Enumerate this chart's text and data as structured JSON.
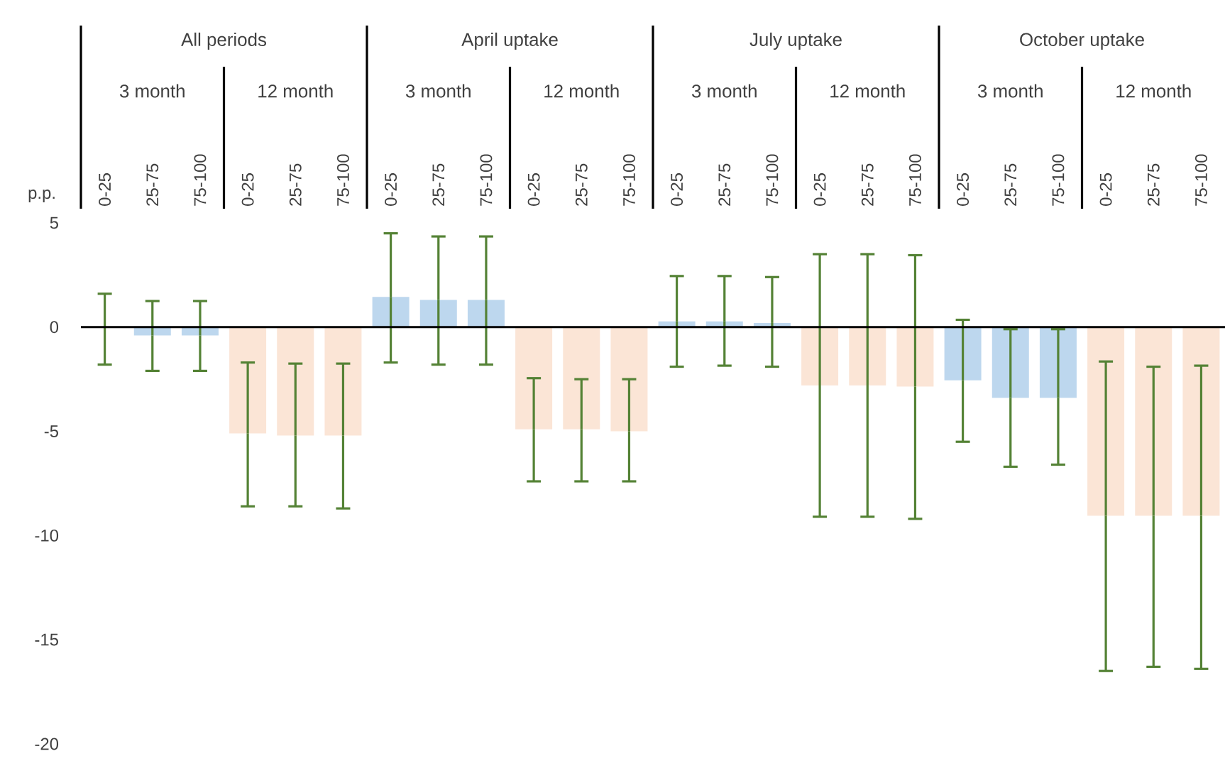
{
  "chart_data": {
    "type": "bar",
    "ylabel": "p.p.",
    "categories": [
      "0-25",
      "25-75",
      "75-100",
      "0-25",
      "25-75",
      "75-100",
      "0-25",
      "25-75",
      "75-100",
      "0-25",
      "25-75",
      "75-100",
      "0-25",
      "25-75",
      "75-100",
      "0-25",
      "25-75",
      "75-100",
      "0-25",
      "25-75",
      "75-100",
      "0-25",
      "25-75",
      "75-100"
    ],
    "series": [
      {
        "color": "#bdd7ee",
        "values": [
          0,
          -0.4,
          -0.4,
          null,
          null,
          null,
          1.45,
          1.3,
          1.3,
          null,
          null,
          null,
          0.27,
          0.27,
          0.2,
          null,
          null,
          null,
          -2.55,
          -3.4,
          -3.4,
          null,
          null,
          null
        ],
        "errors": [
          [
            -1.8,
            1.6
          ],
          [
            -2.1,
            1.25
          ],
          [
            -2.1,
            1.25
          ],
          null,
          null,
          null,
          [
            -1.7,
            4.5
          ],
          [
            -1.8,
            4.35
          ],
          [
            -1.8,
            4.35
          ],
          null,
          null,
          null,
          [
            -1.9,
            2.45
          ],
          [
            -1.85,
            2.45
          ],
          [
            -1.9,
            2.4
          ],
          null,
          null,
          null,
          [
            -5.5,
            0.35
          ],
          [
            -6.7,
            -0.1
          ],
          [
            -6.6,
            -0.1
          ],
          null,
          null,
          null
        ]
      },
      {
        "color": "#fbe5d6",
        "values": [
          null,
          null,
          null,
          -5.1,
          -5.2,
          -5.2,
          null,
          null,
          null,
          -4.9,
          -4.9,
          -5.0,
          null,
          null,
          null,
          -2.8,
          -2.8,
          -2.85,
          null,
          null,
          null,
          -9.05,
          -9.05,
          -9.05
        ],
        "errors": [
          null,
          null,
          null,
          [
            -8.6,
            -1.7
          ],
          [
            -8.6,
            -1.75
          ],
          [
            -8.7,
            -1.75
          ],
          null,
          null,
          null,
          [
            -7.4,
            -2.45
          ],
          [
            -7.4,
            -2.5
          ],
          [
            -7.4,
            -2.5
          ],
          null,
          null,
          null,
          [
            -9.1,
            3.5
          ],
          [
            -9.1,
            3.5
          ],
          [
            -9.2,
            3.45
          ],
          null,
          null,
          null,
          [
            -16.5,
            -1.65
          ],
          [
            -16.3,
            -1.9
          ],
          [
            -16.4,
            -1.85
          ]
        ]
      }
    ],
    "ylim": [
      -20,
      5
    ],
    "yticks": [
      5,
      0,
      -5,
      -10,
      -15,
      -20
    ],
    "annotations": [
      "All periods",
      "April uptake",
      "July uptake",
      "October uptake",
      "3 month",
      "12 month",
      "3 month",
      "12 month",
      "3 month",
      "12 month",
      "3 month",
      "12 month"
    ]
  }
}
